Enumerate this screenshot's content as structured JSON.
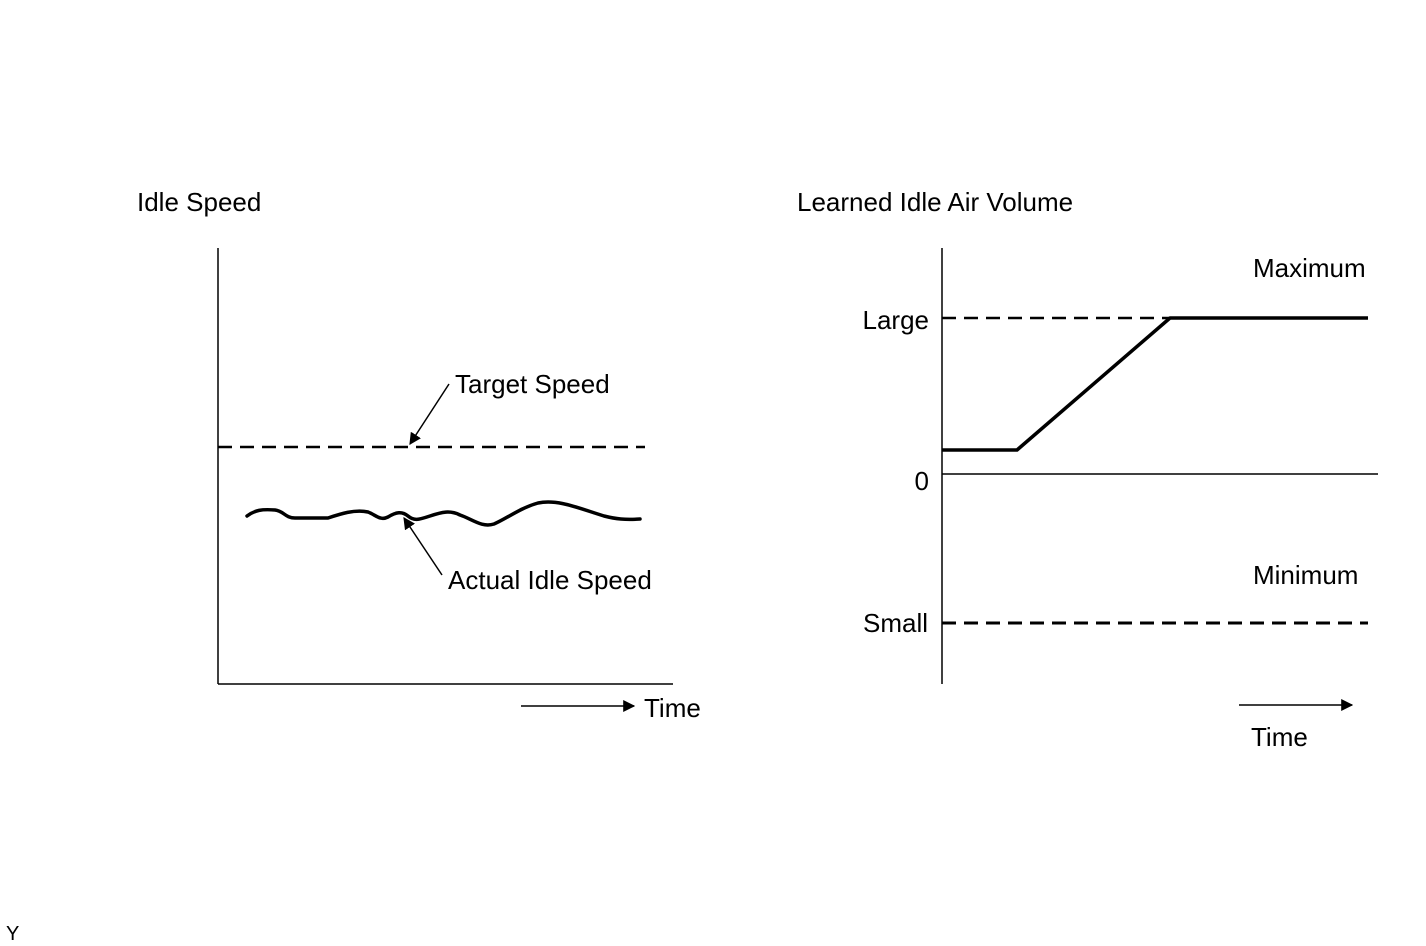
{
  "left_panel": {
    "title": "Idle Speed",
    "target_label": "Target Speed",
    "actual_label": "Actual Idle Speed",
    "time_label": "Time"
  },
  "right_panel": {
    "title": "Learned Idle Air Volume",
    "max_label": "Maximum",
    "large_label": "Large",
    "zero_label": "0",
    "min_label": "Minimum",
    "small_label": "Small",
    "time_label": "Time"
  },
  "corner_mark": "Y",
  "colors": {
    "line": "#000000",
    "background": "#ffffff"
  }
}
